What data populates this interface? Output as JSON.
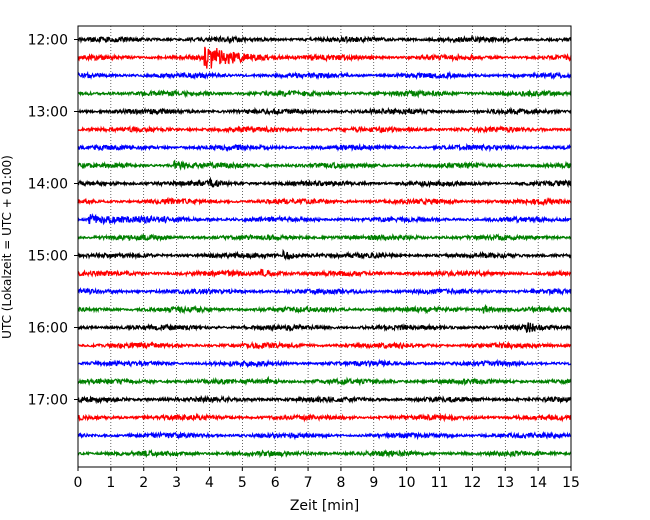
{
  "chart_data": {
    "type": "line",
    "title": "",
    "xlabel": "Zeit  [min]",
    "ylabel": "UTC (Lokalzeit = UTC + 01:00)",
    "xlim": [
      0,
      15
    ],
    "x_ticks": [
      "0",
      "1",
      "2",
      "3",
      "4",
      "5",
      "6",
      "7",
      "8",
      "9",
      "10",
      "11",
      "12",
      "13",
      "14",
      "15"
    ],
    "y_ticks": [
      "12:00",
      "13:00",
      "14:00",
      "15:00",
      "16:00",
      "17:00"
    ],
    "grid": "vertical dotted",
    "trace_interval_min": 15,
    "traces": [
      {
        "start": "12:00",
        "color": "#000000",
        "events": []
      },
      {
        "start": "12:15",
        "color": "#ff0000",
        "events": [
          {
            "x": 3.9,
            "amp": 1.0,
            "decay": 0.9
          }
        ]
      },
      {
        "start": "12:30",
        "color": "#0000ff",
        "events": []
      },
      {
        "start": "12:45",
        "color": "#008000",
        "events": []
      },
      {
        "start": "13:00",
        "color": "#000000",
        "events": []
      },
      {
        "start": "13:15",
        "color": "#ff0000",
        "events": []
      },
      {
        "start": "13:30",
        "color": "#0000ff",
        "events": []
      },
      {
        "start": "13:45",
        "color": "#008000",
        "events": [
          {
            "x": 3.0,
            "amp": 0.35,
            "decay": 0.3
          }
        ]
      },
      {
        "start": "14:00",
        "color": "#000000",
        "events": [
          {
            "x": 4.0,
            "amp": 0.3,
            "decay": 0.2
          }
        ]
      },
      {
        "start": "14:15",
        "color": "#ff0000",
        "events": []
      },
      {
        "start": "14:30",
        "color": "#0000ff",
        "events": [
          {
            "x": 0.4,
            "amp": 0.45,
            "decay": 1.0
          }
        ]
      },
      {
        "start": "14:45",
        "color": "#008000",
        "events": []
      },
      {
        "start": "15:00",
        "color": "#000000",
        "events": [
          {
            "x": 6.3,
            "amp": 0.35,
            "decay": 0.3
          }
        ]
      },
      {
        "start": "15:15",
        "color": "#ff0000",
        "events": [
          {
            "x": 5.6,
            "amp": 0.3,
            "decay": 0.4
          }
        ]
      },
      {
        "start": "15:30",
        "color": "#0000ff",
        "events": []
      },
      {
        "start": "15:45",
        "color": "#008000",
        "events": [
          {
            "x": 12.4,
            "amp": 0.3,
            "decay": 0.2
          }
        ]
      },
      {
        "start": "16:00",
        "color": "#000000",
        "events": [
          {
            "x": 13.7,
            "amp": 0.3,
            "decay": 0.2
          }
        ]
      },
      {
        "start": "16:15",
        "color": "#ff0000",
        "events": []
      },
      {
        "start": "16:30",
        "color": "#0000ff",
        "events": []
      },
      {
        "start": "16:45",
        "color": "#008000",
        "events": [
          {
            "x": 5.8,
            "amp": 0.3,
            "decay": 0.2
          }
        ]
      },
      {
        "start": "17:00",
        "color": "#000000",
        "events": []
      },
      {
        "start": "17:15",
        "color": "#ff0000",
        "events": []
      },
      {
        "start": "17:30",
        "color": "#0000ff",
        "events": []
      },
      {
        "start": "17:45",
        "color": "#008000",
        "events": []
      }
    ]
  }
}
